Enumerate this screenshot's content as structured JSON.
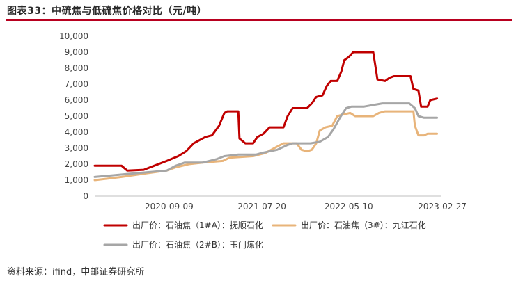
{
  "header": {
    "title": "图表33：中硫焦与低硫焦价格对比（元/吨）"
  },
  "footer": {
    "source": "资料来源：ifind，中邮证券研究所"
  },
  "chart_data": {
    "type": "line",
    "title": "图表33：中硫焦与低硫焦价格对比（元/吨）",
    "xlabel": "",
    "ylabel": "",
    "ylim": [
      0,
      10000
    ],
    "yticks": [
      0,
      1000,
      2000,
      3000,
      4000,
      5000,
      6000,
      7000,
      8000,
      9000,
      10000
    ],
    "ytick_labels": [
      "0",
      "1,000",
      "2,000",
      "3,000",
      "4,000",
      "5,000",
      "6,000",
      "7,000",
      "8,000",
      "9,000",
      "10,000"
    ],
    "xlim": [
      "2020-01-01",
      "2023-03-20"
    ],
    "xtick_labels": [
      "2020-09-09",
      "2021-07-20",
      "2022-05-10",
      "2023-02-27"
    ],
    "grid": false,
    "legend_position": "bottom",
    "series": [
      {
        "name": "出厂价：石油焦（1#A）：抚顺石化",
        "color": "#c00000",
        "points": [
          [
            "2020-01-01",
            1900
          ],
          [
            "2020-04-01",
            1900
          ],
          [
            "2020-04-20",
            1600
          ],
          [
            "2020-06-15",
            1650
          ],
          [
            "2020-07-20",
            1900
          ],
          [
            "2020-09-01",
            2200
          ],
          [
            "2020-10-10",
            2500
          ],
          [
            "2020-11-05",
            2800
          ],
          [
            "2020-12-01",
            3300
          ],
          [
            "2021-01-10",
            3700
          ],
          [
            "2021-02-01",
            3800
          ],
          [
            "2021-02-25",
            4400
          ],
          [
            "2021-03-15",
            5200
          ],
          [
            "2021-03-25",
            5300
          ],
          [
            "2021-05-01",
            5300
          ],
          [
            "2021-05-05",
            3600
          ],
          [
            "2021-05-25",
            3300
          ],
          [
            "2021-06-20",
            3300
          ],
          [
            "2021-07-05",
            3700
          ],
          [
            "2021-07-25",
            3900
          ],
          [
            "2021-08-15",
            4300
          ],
          [
            "2021-10-01",
            4300
          ],
          [
            "2021-10-15",
            5000
          ],
          [
            "2021-11-01",
            5500
          ],
          [
            "2021-12-20",
            5500
          ],
          [
            "2022-01-05",
            5800
          ],
          [
            "2022-01-20",
            6200
          ],
          [
            "2022-02-10",
            6300
          ],
          [
            "2022-02-25",
            6900
          ],
          [
            "2022-03-10",
            7200
          ],
          [
            "2022-04-01",
            7200
          ],
          [
            "2022-04-15",
            7800
          ],
          [
            "2022-04-25",
            8500
          ],
          [
            "2022-05-10",
            8700
          ],
          [
            "2022-05-25",
            9000
          ],
          [
            "2022-08-01",
            9000
          ],
          [
            "2022-08-15",
            7300
          ],
          [
            "2022-09-10",
            7200
          ],
          [
            "2022-09-25",
            7400
          ],
          [
            "2022-10-10",
            7500
          ],
          [
            "2022-12-05",
            7500
          ],
          [
            "2022-12-15",
            6700
          ],
          [
            "2023-01-01",
            6600
          ],
          [
            "2023-01-10",
            5600
          ],
          [
            "2023-02-01",
            5600
          ],
          [
            "2023-02-10",
            6000
          ],
          [
            "2023-03-05",
            6100
          ]
        ]
      },
      {
        "name": "出厂价：石油焦（3#）：九江石化",
        "color": "#e8b47a",
        "points": [
          [
            "2020-01-01",
            1000
          ],
          [
            "2020-02-15",
            1100
          ],
          [
            "2020-04-01",
            1200
          ],
          [
            "2020-06-15",
            1400
          ],
          [
            "2020-09-01",
            1600
          ],
          [
            "2020-10-01",
            1800
          ],
          [
            "2020-11-15",
            2000
          ],
          [
            "2021-01-01",
            2100
          ],
          [
            "2021-03-10",
            2200
          ],
          [
            "2021-04-01",
            2400
          ],
          [
            "2021-06-20",
            2500
          ],
          [
            "2021-08-01",
            2700
          ],
          [
            "2021-09-10",
            3100
          ],
          [
            "2021-10-01",
            3300
          ],
          [
            "2021-11-15",
            3300
          ],
          [
            "2021-12-01",
            2900
          ],
          [
            "2021-12-20",
            2800
          ],
          [
            "2022-01-05",
            2900
          ],
          [
            "2022-01-20",
            3300
          ],
          [
            "2022-02-01",
            4100
          ],
          [
            "2022-02-20",
            4300
          ],
          [
            "2022-03-15",
            4400
          ],
          [
            "2022-04-01",
            5000
          ],
          [
            "2022-04-20",
            5100
          ],
          [
            "2022-05-15",
            5200
          ],
          [
            "2022-06-01",
            5000
          ],
          [
            "2022-08-01",
            5000
          ],
          [
            "2022-08-20",
            5200
          ],
          [
            "2022-09-10",
            5300
          ],
          [
            "2022-12-15",
            5300
          ],
          [
            "2022-12-20",
            4400
          ],
          [
            "2023-01-01",
            3800
          ],
          [
            "2023-01-20",
            3800
          ],
          [
            "2023-02-01",
            3900
          ],
          [
            "2023-03-05",
            3900
          ]
        ]
      },
      {
        "name": "出厂价：石油焦（2#B）：玉门炼化",
        "color": "#a6a6a6",
        "points": [
          [
            "2020-01-01",
            1200
          ],
          [
            "2020-03-01",
            1300
          ],
          [
            "2020-05-01",
            1400
          ],
          [
            "2020-09-01",
            1600
          ],
          [
            "2020-10-01",
            1900
          ],
          [
            "2020-11-01",
            2100
          ],
          [
            "2021-01-01",
            2100
          ],
          [
            "2021-02-15",
            2300
          ],
          [
            "2021-03-15",
            2500
          ],
          [
            "2021-05-01",
            2600
          ],
          [
            "2021-07-01",
            2600
          ],
          [
            "2021-07-20",
            2700
          ],
          [
            "2021-09-10",
            2900
          ],
          [
            "2021-10-15",
            3200
          ],
          [
            "2021-11-01",
            3300
          ],
          [
            "2022-01-01",
            3300
          ],
          [
            "2022-02-01",
            3400
          ],
          [
            "2022-03-01",
            3700
          ],
          [
            "2022-03-20",
            4200
          ],
          [
            "2022-04-10",
            4900
          ],
          [
            "2022-05-01",
            5500
          ],
          [
            "2022-05-20",
            5600
          ],
          [
            "2022-07-01",
            5600
          ],
          [
            "2022-08-01",
            5700
          ],
          [
            "2022-09-01",
            5800
          ],
          [
            "2022-12-01",
            5800
          ],
          [
            "2022-12-20",
            5500
          ],
          [
            "2023-01-01",
            5000
          ],
          [
            "2023-01-20",
            4900
          ],
          [
            "2023-03-05",
            4900
          ]
        ]
      }
    ]
  }
}
